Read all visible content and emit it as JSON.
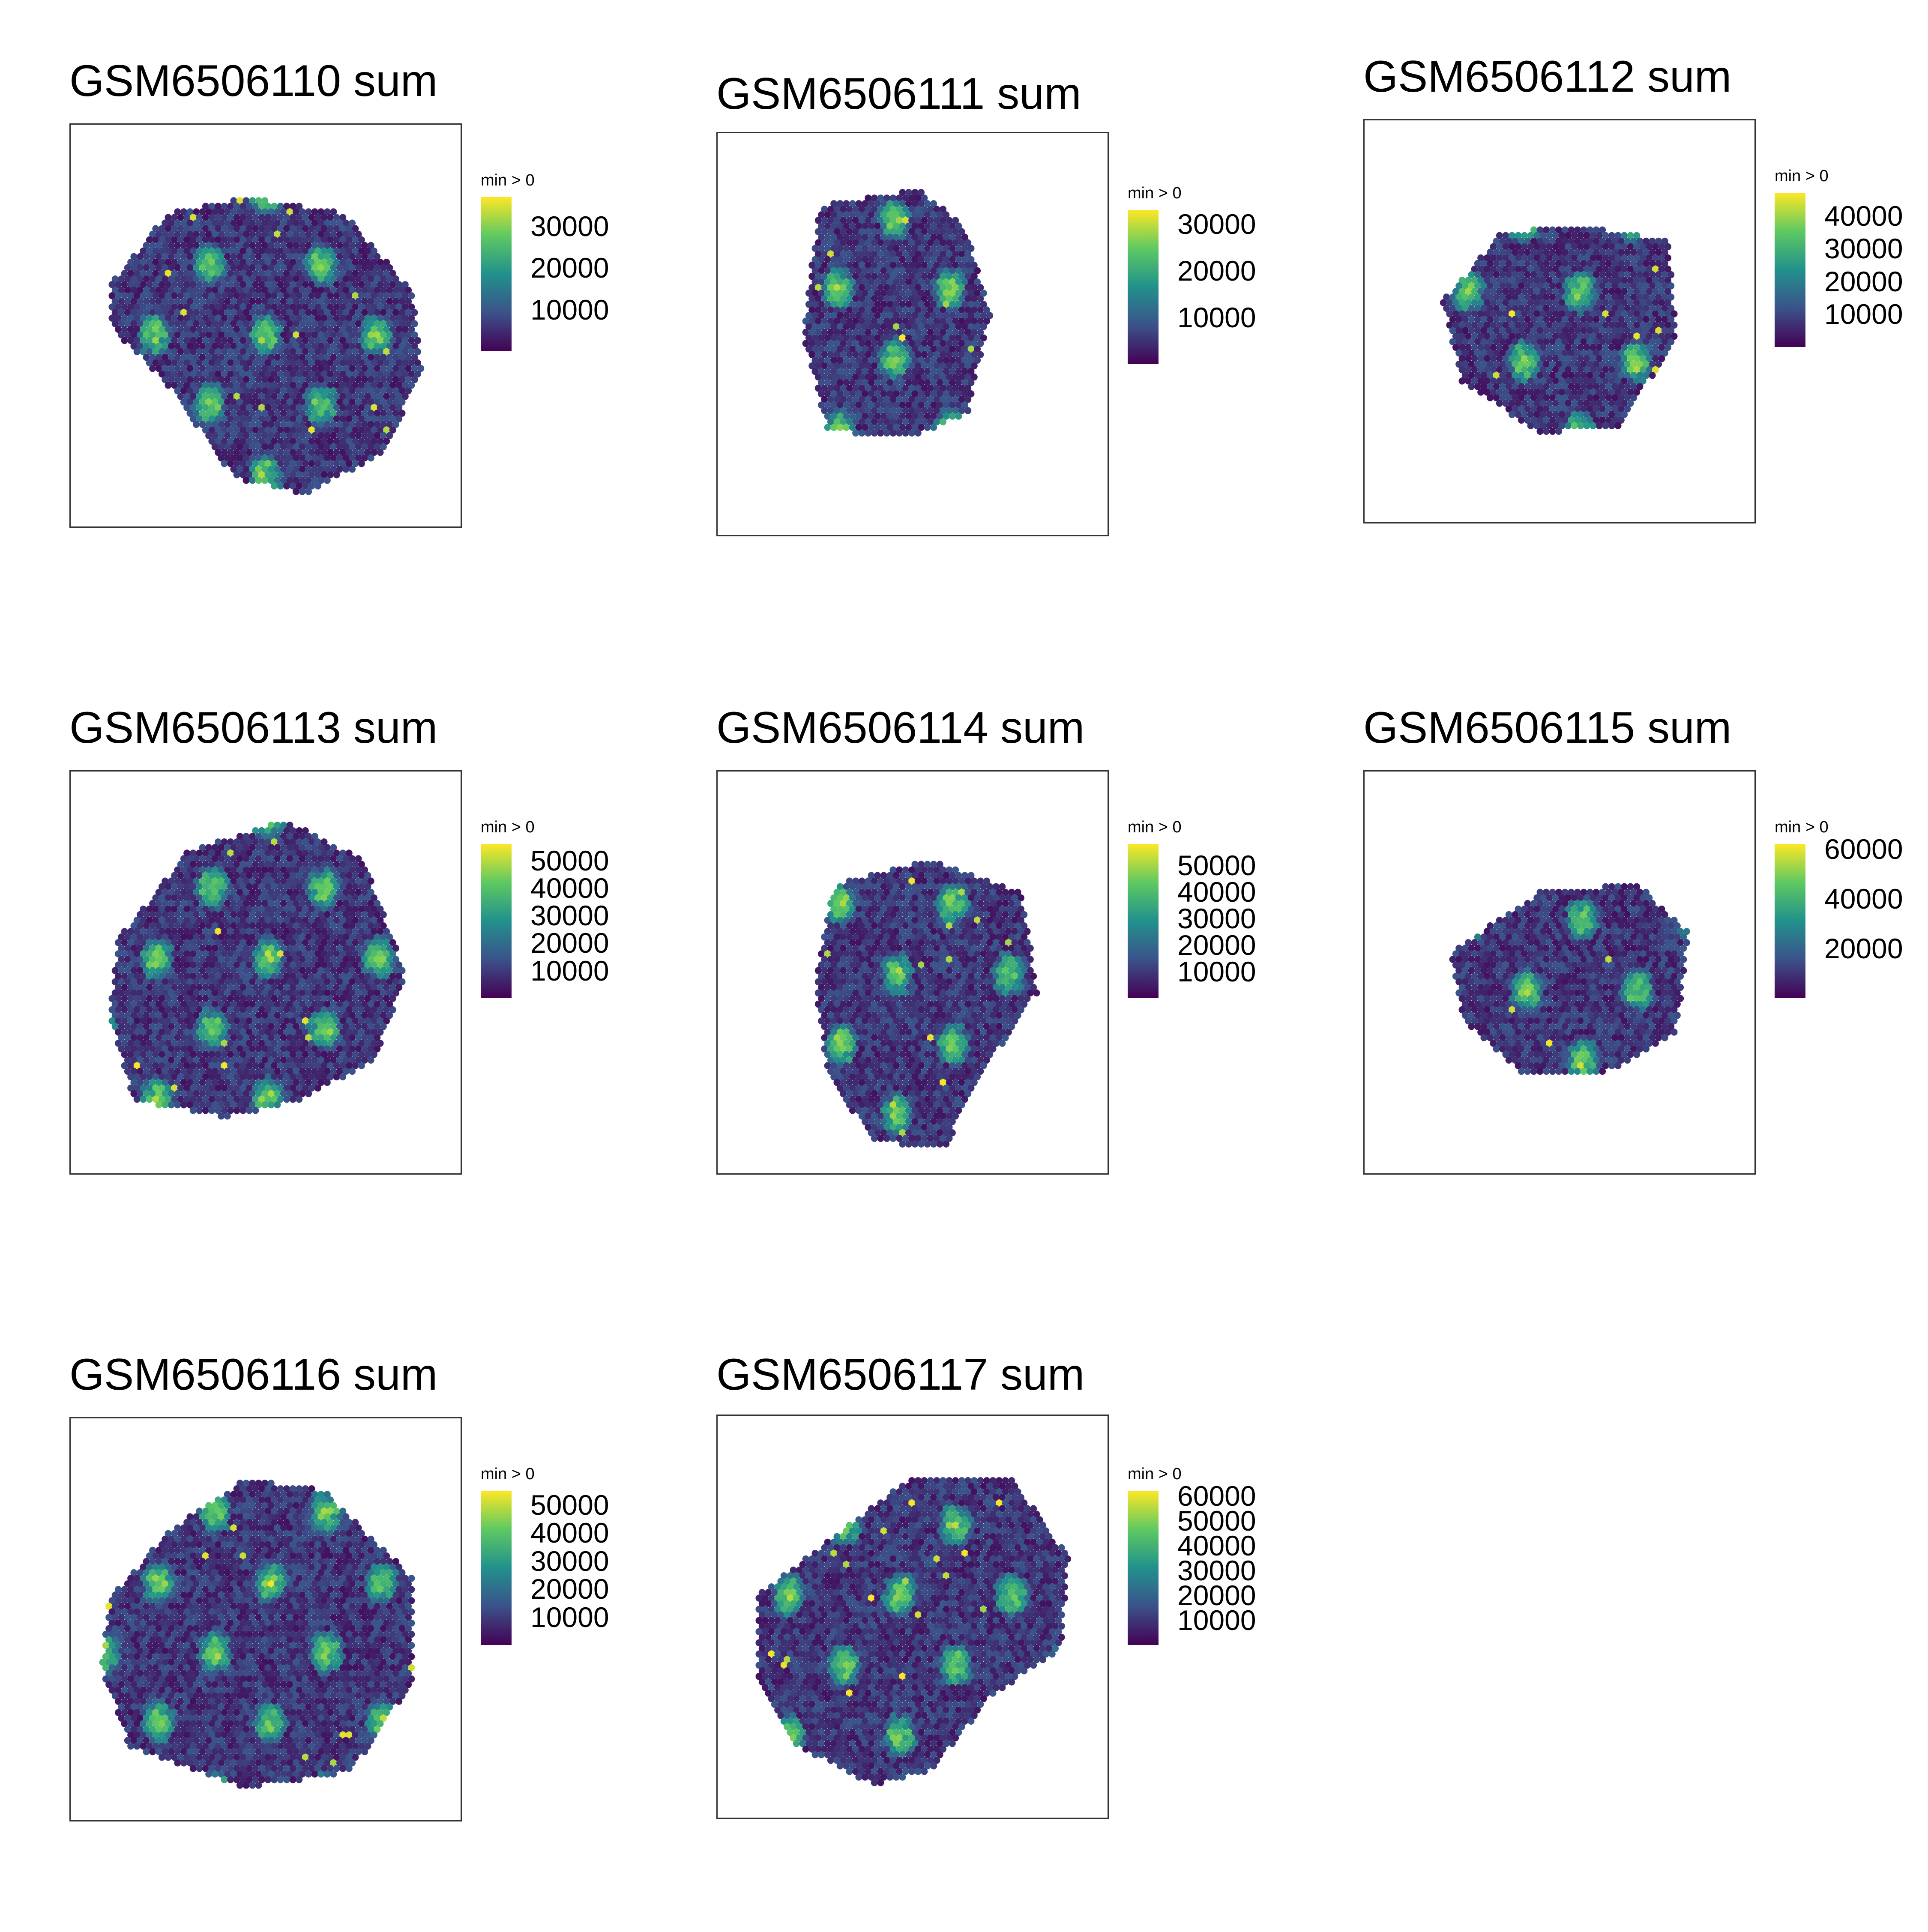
{
  "page": {
    "background": "#ffffff"
  },
  "colorscale": {
    "name": "viridis",
    "stops": [
      "#440154",
      "#3b528b",
      "#21918c",
      "#5ec962",
      "#fde725"
    ]
  },
  "chart_data": [
    {
      "type": "heatmap",
      "title": "GSM6506110 sum",
      "legend_title": "min > 0",
      "colorbar_range": [
        0,
        37000
      ],
      "colorbar_ticks": [
        "10000",
        "20000",
        "30000"
      ],
      "colorbar_tick_values": [
        10000,
        20000,
        30000
      ]
    },
    {
      "type": "heatmap",
      "title": "GSM6506111 sum",
      "legend_title": "min > 0",
      "colorbar_range": [
        0,
        33000
      ],
      "colorbar_ticks": [
        "10000",
        "20000",
        "30000"
      ],
      "colorbar_tick_values": [
        10000,
        20000,
        30000
      ]
    },
    {
      "type": "heatmap",
      "title": "GSM6506112 sum",
      "legend_title": "min > 0",
      "colorbar_range": [
        0,
        47000
      ],
      "colorbar_ticks": [
        "10000",
        "20000",
        "30000",
        "40000"
      ],
      "colorbar_tick_values": [
        10000,
        20000,
        30000,
        40000
      ]
    },
    {
      "type": "heatmap",
      "title": "GSM6506113 sum",
      "legend_title": "min > 0",
      "colorbar_range": [
        0,
        56000
      ],
      "colorbar_ticks": [
        "10000",
        "20000",
        "30000",
        "40000",
        "50000"
      ],
      "colorbar_tick_values": [
        10000,
        20000,
        30000,
        40000,
        50000
      ]
    },
    {
      "type": "heatmap",
      "title": "GSM6506114 sum",
      "legend_title": "min > 0",
      "colorbar_range": [
        0,
        58000
      ],
      "colorbar_ticks": [
        "10000",
        "20000",
        "30000",
        "40000",
        "50000"
      ],
      "colorbar_tick_values": [
        10000,
        20000,
        30000,
        40000,
        50000
      ]
    },
    {
      "type": "heatmap",
      "title": "GSM6506115 sum",
      "legend_title": "min > 0",
      "colorbar_range": [
        0,
        62000
      ],
      "colorbar_ticks": [
        "20000",
        "40000",
        "60000"
      ],
      "colorbar_tick_values": [
        20000,
        40000,
        60000
      ]
    },
    {
      "type": "heatmap",
      "title": "GSM6506116 sum",
      "legend_title": "min > 0",
      "colorbar_range": [
        0,
        55000
      ],
      "colorbar_ticks": [
        "10000",
        "20000",
        "30000",
        "40000",
        "50000"
      ],
      "colorbar_tick_values": [
        10000,
        20000,
        30000,
        40000,
        50000
      ]
    },
    {
      "type": "heatmap",
      "title": "GSM6506117 sum",
      "legend_title": "min > 0",
      "colorbar_range": [
        0,
        62000
      ],
      "colorbar_ticks": [
        "10000",
        "20000",
        "30000",
        "40000",
        "50000",
        "60000"
      ],
      "colorbar_tick_values": [
        10000,
        20000,
        30000,
        40000,
        50000,
        60000
      ]
    }
  ]
}
